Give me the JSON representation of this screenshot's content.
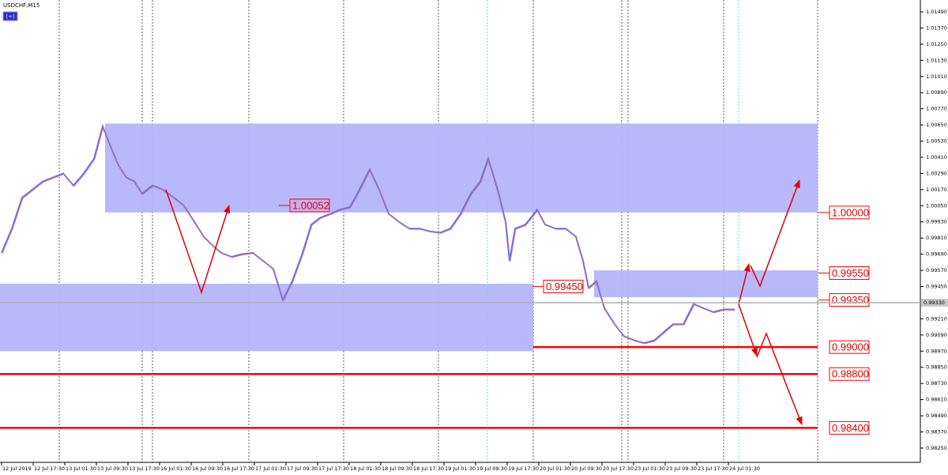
{
  "chart_data": {
    "type": "line",
    "title": "USDCHF,M15",
    "button": "[+]",
    "color": "#6f6fe8",
    "values": [
      0.997,
      0.9988,
      1.0011,
      1.0017,
      1.0023,
      1.0026,
      1.0029,
      1.002,
      1.0029,
      1.004,
      1.0064,
      1.0049,
      1.0035,
      1.0026,
      1.0023,
      1.0014,
      1.002,
      1.0017,
      1.0011,
      1.0005,
      0.9993,
      0.9982,
      0.9976,
      0.997,
      0.9967,
      0.9969,
      0.997,
      0.9964,
      0.9958,
      0.9935,
      0.9949,
      0.997,
      0.9991,
      0.9996,
      0.9999,
      1.0002,
      1.0004,
      1.0017,
      1.0032,
      1.0017,
      0.9999,
      0.9993,
      0.9988,
      0.9988,
      0.9986,
      0.9985,
      0.9988,
      0.9999,
      1.0014,
      1.0023,
      1.004,
      1.0017,
      0.9993,
      0.9964,
      0.9988,
      0.9991,
      1.0002,
      0.9991,
      0.9988,
      0.9988,
      0.9982,
      0.9964,
      0.9944,
      0.9949,
      0.9929,
      0.9917,
      0.9908,
      0.9905,
      0.9903,
      0.9905,
      0.9911,
      0.9917,
      0.9917,
      0.9932,
      0.9929,
      0.9926,
      0.9928,
      0.9928
    ],
    "ylim": [
      0.98144,
      1.01578
    ],
    "yticks": [
      {
        "value": 1.0149,
        "label": "1.01490"
      },
      {
        "value": 1.0137,
        "label": "1.01370"
      },
      {
        "value": 1.0125,
        "label": "1.01250"
      },
      {
        "value": 1.0113,
        "label": "1.01130"
      },
      {
        "value": 1.0101,
        "label": "1.01010"
      },
      {
        "value": 1.0089,
        "label": "1.00890"
      },
      {
        "value": 1.0077,
        "label": "1.00770"
      },
      {
        "value": 1.0065,
        "label": "1.00650"
      },
      {
        "value": 1.0053,
        "label": "1.00530"
      },
      {
        "value": 1.0041,
        "label": "1.00410"
      },
      {
        "value": 1.0029,
        "label": "1.00290"
      },
      {
        "value": 1.0017,
        "label": "1.00170"
      },
      {
        "value": 1.0005,
        "label": "1.00050"
      },
      {
        "value": 0.9993,
        "label": "0.99930"
      },
      {
        "value": 0.9981,
        "label": "0.99810"
      },
      {
        "value": 0.9969,
        "label": "0.99690"
      },
      {
        "value": 0.9957,
        "label": "0.99570"
      },
      {
        "value": 0.9945,
        "label": "0.99450"
      },
      {
        "value": 0.9921,
        "label": "0.99210"
      },
      {
        "value": 0.9909,
        "label": "0.99090"
      },
      {
        "value": 0.9897,
        "label": "0.98970"
      },
      {
        "value": 0.9885,
        "label": "0.98850"
      },
      {
        "value": 0.9873,
        "label": "0.98730"
      },
      {
        "value": 0.9861,
        "label": "0.98610"
      },
      {
        "value": 0.9849,
        "label": "0.98490"
      },
      {
        "value": 0.9837,
        "label": "0.98370"
      },
      {
        "value": 0.9825,
        "label": "0.98250"
      }
    ],
    "xticks": [
      "12 Jul 2019",
      "12 Jul 17:30",
      "13 Jul 01:30",
      "13 Jul 09:30",
      "13 Jul 17:30",
      "16 Jul 01:30",
      "16 Jul 09:30",
      "16 Jul 17:30",
      "17 Jul 01:30",
      "17 Jul 09:30",
      "17 Jul 17:30",
      "18 Jul 01:30",
      "18 Jul 09:30",
      "18 Jul 17:30",
      "19 Jul 01:30",
      "19 Jul 09:30",
      "19 Jul 17:30",
      "20 Jul 01:30",
      "20 Jul 09:30",
      "20 Jul 17:30",
      "23 Jul 01:30",
      "23 Jul 09:30",
      "23 Jul 17:30",
      "24 Jul 01:30"
    ],
    "zone_color": "#b4b4fa",
    "zones": [
      {
        "top": 1.0066,
        "bottom": 1.0
      },
      {
        "top": 0.9947,
        "bottom": 0.9897
      },
      {
        "top": 0.9957,
        "bottom": 0.9937
      }
    ],
    "level_color": "#ff0000",
    "levels": [
      {
        "value": 1.0,
        "label": "1.00000"
      },
      {
        "value": 0.9955,
        "label": "0.99550"
      },
      {
        "value": 0.9935,
        "label": "0.99350"
      },
      {
        "value": 0.99,
        "label": "0.99000"
      },
      {
        "value": 0.988,
        "label": "0.98800"
      },
      {
        "value": 0.984,
        "label": "0.98400"
      },
      {
        "value": 1.00052,
        "label": "1.00052"
      },
      {
        "value": 0.9945,
        "label": "0.99450"
      }
    ],
    "current_price": {
      "value": 0.9933,
      "label": "0.99330"
    }
  }
}
